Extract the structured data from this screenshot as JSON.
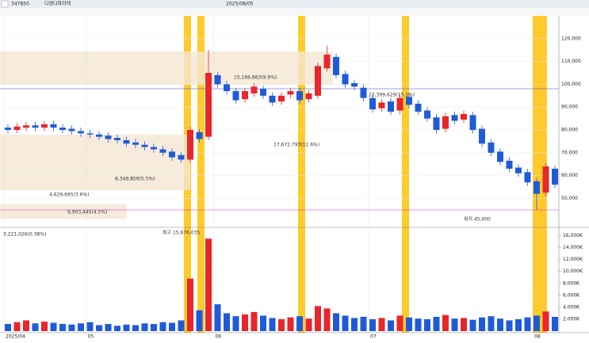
{
  "header": {
    "code": "347850",
    "name": "디앤디파마텍",
    "date": "2025/08/05"
  },
  "annotations": [
    "15,166,863(9.9%)",
    "22,399,629(15.1%)",
    "17,672,793(11.6%)",
    "8,349,856(5.5%)",
    "4,629,695(3.6%)",
    "6,903,445(4.5%)",
    "최저 45,000",
    "3,221,026(0.38%)",
    "최고 15,676,035"
  ],
  "chart_data": {
    "type": "candlestick",
    "categories": [
      "2025/04",
      null,
      null,
      null,
      null,
      null,
      null,
      null,
      null,
      "05",
      null,
      null,
      null,
      null,
      null,
      null,
      null,
      null,
      null,
      null,
      null,
      null,
      null,
      "06",
      null,
      null,
      null,
      null,
      null,
      null,
      null,
      null,
      null,
      null,
      null,
      null,
      null,
      null,
      null,
      null,
      "07",
      null,
      null,
      null,
      null,
      null,
      null,
      null,
      null,
      null,
      null,
      null,
      null,
      null,
      null,
      null,
      null,
      null,
      "08",
      null,
      null
    ],
    "open": [
      81000,
      80000,
      81000,
      82000,
      81000,
      82500,
      81000,
      80500,
      79500,
      78500,
      78000,
      77500,
      76500,
      75500,
      74500,
      73500,
      72500,
      71500,
      70500,
      69000,
      67000,
      79000,
      77000,
      104000,
      100000,
      97000,
      93500,
      96000,
      98000,
      95000,
      92500,
      95500,
      97000,
      93500,
      95000,
      107000,
      112000,
      104500,
      100500,
      98500,
      94000,
      89500,
      92500,
      88500,
      94500,
      91500,
      88500,
      85500,
      80500,
      86500,
      84500,
      86500,
      80500,
      74500,
      70500,
      66500,
      63500,
      61500,
      57500,
      52500,
      63000
    ],
    "high": [
      82500,
      83000,
      83500,
      83500,
      84000,
      84000,
      82500,
      82000,
      81000,
      80000,
      79500,
      79000,
      78000,
      77000,
      76000,
      75000,
      74000,
      73000,
      72000,
      70500,
      81500,
      80500,
      115000,
      105500,
      101500,
      98500,
      98500,
      100500,
      99500,
      96500,
      96500,
      98500,
      98500,
      97500,
      109500,
      117000,
      113500,
      106000,
      102000,
      100000,
      95500,
      93500,
      94000,
      95500,
      96000,
      93000,
      90000,
      87000,
      87500,
      88000,
      88500,
      88000,
      82000,
      76000,
      72000,
      68000,
      65000,
      63000,
      59000,
      65500,
      64500
    ],
    "low": [
      78500,
      78500,
      79500,
      79500,
      79500,
      79500,
      78500,
      78000,
      77000,
      76500,
      75500,
      74500,
      74000,
      72500,
      72000,
      71000,
      70000,
      68500,
      66500,
      65500,
      65500,
      74500,
      75500,
      98500,
      95500,
      91500,
      92000,
      94500,
      93500,
      90500,
      91000,
      94000,
      91500,
      92000,
      93500,
      105500,
      102500,
      98500,
      97500,
      92500,
      87500,
      88000,
      86500,
      87000,
      89500,
      86500,
      83500,
      78500,
      79000,
      82500,
      83000,
      78500,
      72500,
      68500,
      64500,
      61500,
      59500,
      55500,
      45000,
      51000,
      54500
    ],
    "close": [
      80000,
      81500,
      82000,
      81000,
      82500,
      81000,
      80000,
      79500,
      78500,
      78000,
      77000,
      76000,
      75500,
      74000,
      73500,
      72500,
      71500,
      70000,
      68000,
      67000,
      80000,
      76000,
      105000,
      100000,
      97000,
      93000,
      97000,
      99000,
      95000,
      92000,
      95000,
      97000,
      93000,
      96000,
      108000,
      113000,
      104000,
      100000,
      99000,
      94000,
      89000,
      92000,
      88000,
      94000,
      91000,
      88000,
      85000,
      80000,
      86000,
      84000,
      87000,
      80000,
      74000,
      70000,
      66000,
      63000,
      61000,
      57000,
      52000,
      64000,
      56000
    ],
    "up_color": "#e8262b",
    "down_color": "#1f5bd8",
    "ylim": [
      38000,
      130000
    ],
    "yticks": [
      {
        "value": 50000,
        "label": "50,000"
      },
      {
        "value": 60000,
        "label": "60,000"
      },
      {
        "value": 70000,
        "label": "70,000"
      },
      {
        "value": 80000,
        "label": "80,000"
      },
      {
        "value": 90000,
        "label": "90,000"
      },
      {
        "value": 100000,
        "label": "100,000"
      },
      {
        "value": 110000,
        "label": "110,000"
      },
      {
        "value": 120000,
        "label": "120,000"
      }
    ],
    "volume": {
      "values": [
        1200,
        1500,
        1800,
        1300,
        1600,
        1400,
        1200,
        1100,
        1300,
        1500,
        1000,
        1200,
        900,
        1100,
        1000,
        1300,
        1200,
        1500,
        1400,
        1800,
        8800,
        3500,
        15500,
        4500,
        3000,
        2500,
        2800,
        3200,
        2600,
        2200,
        2000,
        2300,
        2500,
        2100,
        4200,
        3800,
        3000,
        2600,
        2200,
        2400,
        2000,
        2200,
        1800,
        2600,
        2300,
        2100,
        2000,
        2400,
        2700,
        2100,
        2200,
        1900,
        2300,
        2500,
        2100,
        1800,
        2000,
        2300,
        2600,
        3300,
        2400
      ],
      "ylim": [
        0,
        17000
      ],
      "yticks": [
        {
          "value": 2000,
          "label": "2,000K"
        },
        {
          "value": 4000,
          "label": "4,000K"
        },
        {
          "value": 6000,
          "label": "6,000K"
        },
        {
          "value": 8000,
          "label": "8,000K"
        },
        {
          "value": 10000,
          "label": "10,000K"
        },
        {
          "value": 12000,
          "label": "12,000K"
        },
        {
          "value": 14000,
          "label": "14,000K"
        },
        {
          "value": 16000,
          "label": "16,000K"
        }
      ]
    }
  }
}
